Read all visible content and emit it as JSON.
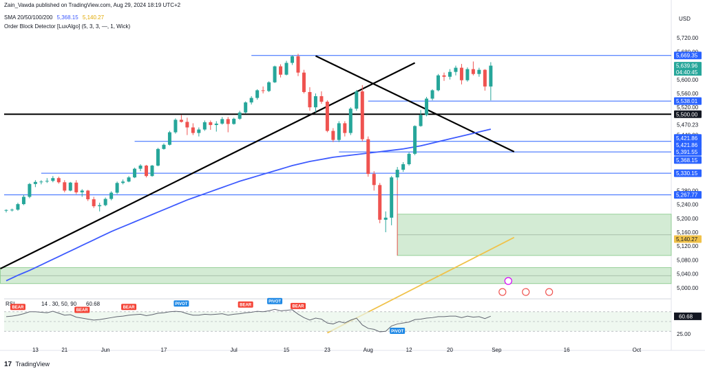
{
  "header": {
    "publisher": "Zain_Vawda published on TradingView.com, Aug 29, 2024 18:19 UTC+2",
    "sma_label": "SMA 20/50/100/200",
    "sma_value_1": "5,368.15",
    "sma_value_2": "5,140.27",
    "obd_label": "Order Block Detector [LuxAlgo] (5, 3, 3, —, 1, Wick)"
  },
  "currency": "USD",
  "logo_text": "TradingView",
  "colors": {
    "up": "#26a69a",
    "down": "#ef5350",
    "sma_blue": "#3d5afe",
    "sma_yellow": "#f0c24a",
    "level_blue": "#2962ff",
    "zone_green": "#a5d6a7",
    "rsi_line": "#606470",
    "bear_badge": "#f44336",
    "pivot_badge": "#1e88e5"
  },
  "chart_data": {
    "type": "candlestick",
    "y_range": [
      4970,
      5750
    ],
    "price_ticks": [
      {
        "v": 5720,
        "t": "5,720.00"
      },
      {
        "v": 5680,
        "t": "5,680.00"
      },
      {
        "v": 5600,
        "t": "5,600.00"
      },
      {
        "v": 5560,
        "t": "5,560.00"
      },
      {
        "v": 5520,
        "t": "5,520.00"
      },
      {
        "v": 5470,
        "t": "5,470.23"
      },
      {
        "v": 5440,
        "t": "5,440.00"
      },
      {
        "v": 5280,
        "t": "5,280.00"
      },
      {
        "v": 5240,
        "t": "5,240.00"
      },
      {
        "v": 5200,
        "t": "5,200.00"
      },
      {
        "v": 5160,
        "t": "5,160.00"
      },
      {
        "v": 5120,
        "t": "5,120.00"
      },
      {
        "v": 5080,
        "t": "5,080.00"
      },
      {
        "v": 5040,
        "t": "5,040.00"
      },
      {
        "v": 5000,
        "t": "5,000.00"
      }
    ],
    "price_tags": [
      {
        "v": 5669.35,
        "t": "5,669.35",
        "style": "blue"
      },
      {
        "v": 5639.96,
        "t": "5,639.96",
        "style": "green"
      },
      {
        "v": 5538.01,
        "t": "5,538.01",
        "style": "blue"
      },
      {
        "v": 5500.0,
        "t": "5,500.00",
        "style": "black"
      },
      {
        "v": 5421.86,
        "t": "5,421.86",
        "style": "blue"
      },
      {
        "v": 5421.86,
        "t": "5,421.86",
        "style": "blue"
      },
      {
        "v": 5391.55,
        "t": "5,391.55",
        "style": "blue"
      },
      {
        "v": 5368.15,
        "t": "5,368.15",
        "style": "blue"
      },
      {
        "v": 5330.15,
        "t": "5,330.15",
        "style": "blue"
      },
      {
        "v": 5267.77,
        "t": "5,267.77",
        "style": "blue"
      },
      {
        "v": 5140.27,
        "t": "5,140.27",
        "style": "yellow"
      }
    ],
    "countdown": "04:40:45",
    "x_ticks": [
      {
        "i": 5,
        "t": "13"
      },
      {
        "i": 10,
        "t": "21"
      },
      {
        "i": 17,
        "t": "Jun"
      },
      {
        "i": 27,
        "t": "17"
      },
      {
        "i": 39,
        "t": "Jul"
      },
      {
        "i": 48,
        "t": "15"
      },
      {
        "i": 55,
        "t": "23"
      },
      {
        "i": 62,
        "t": "Aug"
      },
      {
        "i": 69,
        "t": "12"
      },
      {
        "i": 76,
        "t": "20"
      },
      {
        "i": 84,
        "t": "Sep"
      },
      {
        "i": 96,
        "t": "16"
      },
      {
        "i": 108,
        "t": "Oct"
      }
    ],
    "candles": [
      [
        5222,
        5226,
        5217,
        5224
      ],
      [
        5224,
        5228,
        5220,
        5225
      ],
      [
        5225,
        5245,
        5222,
        5241
      ],
      [
        5241,
        5268,
        5238,
        5262
      ],
      [
        5262,
        5302,
        5258,
        5299
      ],
      [
        5299,
        5310,
        5290,
        5305
      ],
      [
        5305,
        5310,
        5298,
        5306
      ],
      [
        5306,
        5316,
        5302,
        5308
      ],
      [
        5308,
        5322,
        5304,
        5316
      ],
      [
        5316,
        5320,
        5300,
        5304
      ],
      [
        5304,
        5310,
        5275,
        5280
      ],
      [
        5280,
        5305,
        5278,
        5303
      ],
      [
        5303,
        5310,
        5270,
        5275
      ],
      [
        5275,
        5284,
        5262,
        5280
      ],
      [
        5280,
        5282,
        5250,
        5255
      ],
      [
        5255,
        5262,
        5230,
        5235
      ],
      [
        5235,
        5245,
        5220,
        5238
      ],
      [
        5238,
        5260,
        5235,
        5256
      ],
      [
        5256,
        5278,
        5252,
        5274
      ],
      [
        5274,
        5306,
        5270,
        5302
      ],
      [
        5302,
        5312,
        5298,
        5306
      ],
      [
        5306,
        5322,
        5304,
        5318
      ],
      [
        5318,
        5346,
        5316,
        5343
      ],
      [
        5343,
        5356,
        5336,
        5352
      ],
      [
        5352,
        5354,
        5318,
        5322
      ],
      [
        5322,
        5354,
        5320,
        5352
      ],
      [
        5352,
        5403,
        5350,
        5400
      ],
      [
        5400,
        5416,
        5398,
        5412
      ],
      [
        5412,
        5452,
        5410,
        5448
      ],
      [
        5448,
        5488,
        5444,
        5484
      ],
      [
        5484,
        5498,
        5476,
        5478
      ],
      [
        5478,
        5490,
        5440,
        5462
      ],
      [
        5462,
        5474,
        5440,
        5446
      ],
      [
        5446,
        5462,
        5436,
        5456
      ],
      [
        5456,
        5482,
        5452,
        5477
      ],
      [
        5477,
        5482,
        5455,
        5469
      ],
      [
        5469,
        5480,
        5450,
        5473
      ],
      [
        5473,
        5492,
        5470,
        5486
      ],
      [
        5486,
        5492,
        5448,
        5472
      ],
      [
        5472,
        5490,
        5470,
        5487
      ],
      [
        5487,
        5510,
        5484,
        5505
      ],
      [
        5505,
        5537,
        5502,
        5534
      ],
      [
        5534,
        5552,
        5528,
        5547
      ],
      [
        5547,
        5572,
        5542,
        5569
      ],
      [
        5569,
        5580,
        5560,
        5567
      ],
      [
        5567,
        5595,
        5564,
        5592
      ],
      [
        5592,
        5640,
        5590,
        5638
      ],
      [
        5638,
        5644,
        5606,
        5614
      ],
      [
        5614,
        5654,
        5612,
        5648
      ],
      [
        5648,
        5670,
        5642,
        5667
      ],
      [
        5667,
        5674,
        5610,
        5620
      ],
      [
        5620,
        5628,
        5560,
        5564
      ],
      [
        5564,
        5578,
        5510,
        5520
      ],
      [
        5520,
        5560,
        5506,
        5552
      ],
      [
        5552,
        5566,
        5530,
        5536
      ],
      [
        5536,
        5540,
        5448,
        5452
      ],
      [
        5452,
        5460,
        5420,
        5426
      ],
      [
        5426,
        5480,
        5420,
        5474
      ],
      [
        5474,
        5480,
        5436,
        5446
      ],
      [
        5446,
        5520,
        5440,
        5516
      ],
      [
        5516,
        5570,
        5510,
        5566
      ],
      [
        5566,
        5584,
        5422,
        5428
      ],
      [
        5428,
        5436,
        5320,
        5328
      ],
      [
        5328,
        5336,
        5280,
        5296
      ],
      [
        5296,
        5302,
        5186,
        5196
      ],
      [
        5196,
        5220,
        5160,
        5202
      ],
      [
        5202,
        5322,
        5180,
        5318
      ],
      [
        5318,
        5348,
        5310,
        5340
      ],
      [
        5340,
        5362,
        5334,
        5356
      ],
      [
        5356,
        5390,
        5352,
        5386
      ],
      [
        5386,
        5468,
        5382,
        5466
      ],
      [
        5466,
        5512,
        5464,
        5498
      ],
      [
        5498,
        5550,
        5494,
        5545
      ],
      [
        5545,
        5572,
        5540,
        5569
      ],
      [
        5569,
        5616,
        5566,
        5612
      ],
      [
        5612,
        5620,
        5596,
        5608
      ],
      [
        5608,
        5630,
        5600,
        5622
      ],
      [
        5622,
        5640,
        5612,
        5634
      ],
      [
        5634,
        5645,
        5586,
        5598
      ],
      [
        5598,
        5635,
        5594,
        5630
      ],
      [
        5630,
        5652,
        5612,
        5616
      ],
      [
        5616,
        5634,
        5608,
        5628
      ],
      [
        5628,
        5630,
        5568,
        5580
      ],
      [
        5580,
        5650,
        5540,
        5640
      ]
    ],
    "sma_100": [
      5020,
      5028,
      5036,
      5043,
      5050,
      5058,
      5066,
      5074,
      5082,
      5090,
      5098,
      5106,
      5114,
      5122,
      5130,
      5138,
      5146,
      5154,
      5162,
      5169,
      5176,
      5183,
      5190,
      5197,
      5204,
      5211,
      5218,
      5225,
      5232,
      5239,
      5246,
      5253,
      5259,
      5265,
      5271,
      5277,
      5283,
      5289,
      5295,
      5301,
      5307,
      5312,
      5317,
      5322,
      5327,
      5332,
      5337,
      5342,
      5347,
      5352,
      5356,
      5360,
      5364,
      5367,
      5370,
      5373,
      5376,
      5378,
      5380,
      5382,
      5384,
      5386,
      5388,
      5390,
      5392,
      5394,
      5396,
      5398,
      5400,
      5403,
      5406,
      5409,
      5413,
      5417,
      5421,
      5425,
      5429,
      5433,
      5437,
      5441,
      5445,
      5449,
      5453,
      5457
    ],
    "sma_200_segment": [
      [
        55,
        4870
      ],
      [
        87,
        5145
      ]
    ],
    "horizontal_levels": [
      {
        "v": 5669.35,
        "from": 42,
        "color": "blue"
      },
      {
        "v": 5538.01,
        "from": 62,
        "color": "blue"
      },
      {
        "v": 5500.0,
        "from": -1,
        "color": "black"
      },
      {
        "v": 5421.86,
        "from": 22,
        "color": "blue"
      },
      {
        "v": 5391.55,
        "from": 57,
        "color": "blue"
      },
      {
        "v": 5330.15,
        "from": 6,
        "color": "blue"
      },
      {
        "v": 5267.77,
        "from": -1,
        "color": "blue"
      }
    ],
    "trendlines": [
      [
        [
          -1,
          5055
        ],
        [
          70,
          5648
        ]
      ],
      [
        [
          53,
          5668
        ],
        [
          87,
          5392
        ]
      ]
    ],
    "zones": [
      {
        "from": 67,
        "y1": 5093,
        "y2": 5212
      },
      {
        "from": -1,
        "y1": 5012,
        "y2": 5058
      }
    ],
    "rsi": {
      "label_prefix": "RSI",
      "label_mid": "14 . 30, 50, 90",
      "value": "60.68",
      "ticks": [
        {
          "v": 25,
          "t": "25.00"
        }
      ],
      "levels": [
        70,
        50,
        30
      ],
      "values": [
        60,
        61,
        63,
        66,
        70,
        70,
        69,
        68,
        71,
        67,
        63,
        64,
        59,
        57,
        55,
        53,
        54,
        56,
        58,
        60,
        61,
        63,
        64,
        65,
        62,
        64,
        67,
        68,
        70,
        71,
        70,
        66,
        63,
        63,
        65,
        64,
        65,
        66,
        63,
        65,
        66,
        68,
        69,
        71,
        70,
        72,
        75,
        72,
        73,
        74,
        65,
        58,
        53,
        57,
        55,
        47,
        45,
        50,
        47,
        53,
        57,
        43,
        36,
        34,
        29,
        30,
        41,
        45,
        47,
        49,
        54,
        55,
        57,
        58,
        60,
        60,
        61,
        61,
        58,
        61,
        59,
        60,
        56,
        61
      ],
      "signals": [
        {
          "i": 2,
          "t": "BEAR",
          "kind": "bear"
        },
        {
          "i": 13,
          "t": "BEAR",
          "kind": "bear"
        },
        {
          "i": 21,
          "t": "BEAR",
          "kind": "bear"
        },
        {
          "i": 30,
          "t": "PIVOT",
          "kind": "pivot"
        },
        {
          "i": 41,
          "t": "BEAR",
          "kind": "bear"
        },
        {
          "i": 46,
          "t": "PIVOT",
          "kind": "pivot"
        },
        {
          "i": 50,
          "t": "BEAR",
          "kind": "bear"
        },
        {
          "i": 67,
          "t": "PIVOT",
          "kind": "pivot-low"
        }
      ]
    },
    "event_icons": [
      86,
      85,
      89,
      93
    ]
  }
}
